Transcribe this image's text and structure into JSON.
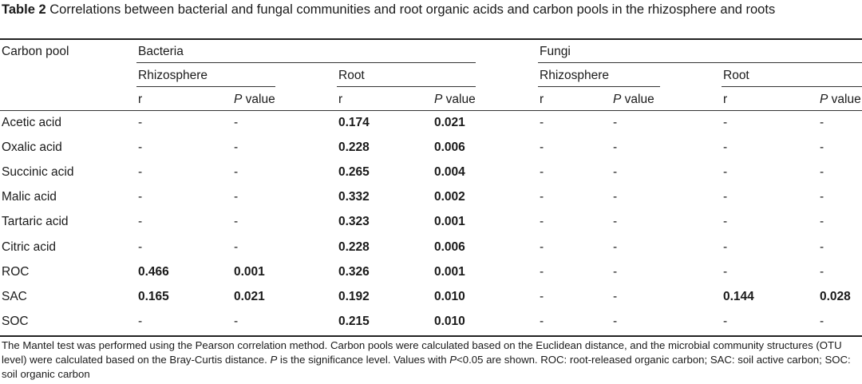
{
  "caption": {
    "label": "Table 2",
    "text": "Correlations between bacterial and fungal communities and root organic acids and carbon pools in the rhizosphere and roots"
  },
  "header": {
    "carbon_pool": "Carbon pool",
    "bacteria": "Bacteria",
    "fungi": "Fungi",
    "rhizosphere": "Rhizosphere",
    "root": "Root",
    "r": "r",
    "p_italic": "P",
    "p_rest": " value"
  },
  "rows": [
    {
      "name": "Acetic acid",
      "vals": [
        "-",
        "-",
        "0.174",
        "0.021",
        "-",
        "-",
        "-",
        "-"
      ]
    },
    {
      "name": "Oxalic acid",
      "vals": [
        "-",
        "-",
        "0.228",
        "0.006",
        "-",
        "-",
        "-",
        "-"
      ]
    },
    {
      "name": "Succinic acid",
      "vals": [
        "-",
        "-",
        "0.265",
        "0.004",
        "-",
        "-",
        "-",
        "-"
      ]
    },
    {
      "name": "Malic acid",
      "vals": [
        "-",
        "-",
        "0.332",
        "0.002",
        "-",
        "-",
        "-",
        "-"
      ]
    },
    {
      "name": "Tartaric acid",
      "vals": [
        "-",
        "-",
        "0.323",
        "0.001",
        "-",
        "-",
        "-",
        "-"
      ]
    },
    {
      "name": "Citric acid",
      "vals": [
        "-",
        "-",
        "0.228",
        "0.006",
        "-",
        "-",
        "-",
        "-"
      ]
    },
    {
      "name": "ROC",
      "vals": [
        "0.466",
        "0.001",
        "0.326",
        "0.001",
        "-",
        "-",
        "-",
        "-"
      ]
    },
    {
      "name": "SAC",
      "vals": [
        "0.165",
        "0.021",
        "0.192",
        "0.010",
        "-",
        "-",
        "0.144",
        "0.028"
      ]
    },
    {
      "name": "SOC",
      "vals": [
        "-",
        "-",
        "0.215",
        "0.010",
        "-",
        "-",
        "-",
        "-"
      ]
    }
  ],
  "footnote": {
    "part1": "The Mantel test was performed using the Pearson correlation method. Carbon pools were calculated based on the Euclidean distance, and the microbial community structures (OTU level) were calculated based on the Bray-Curtis distance. ",
    "p1": "P",
    "part2": " is the significance level. Values with ",
    "p2": "P",
    "part3": "<0.05 are shown. ROC: root-released organic carbon; SAC: soil active carbon; SOC: soil organic carbon"
  }
}
